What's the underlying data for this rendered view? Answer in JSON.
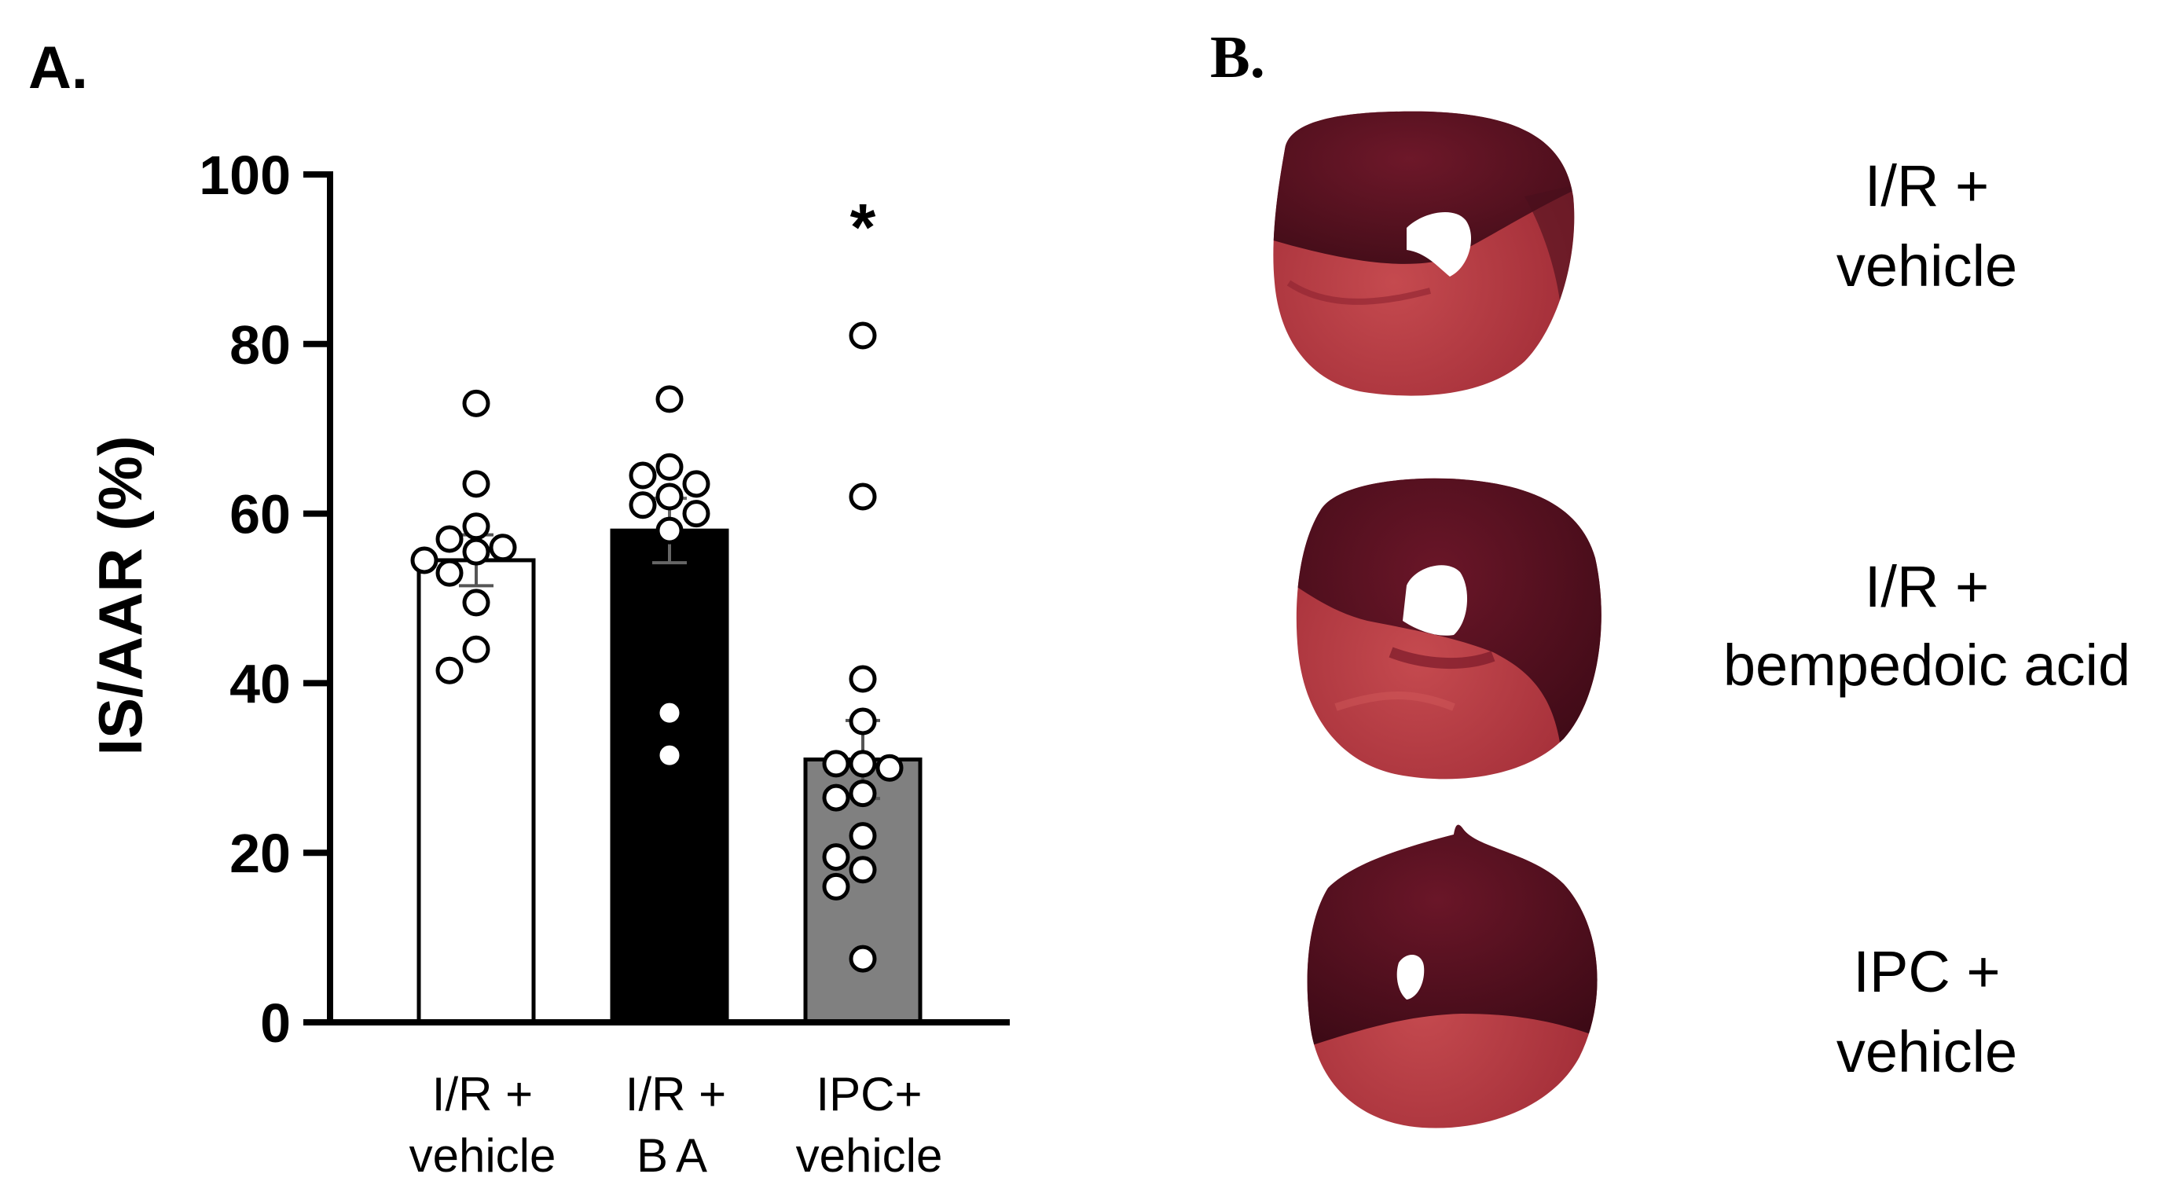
{
  "panels": {
    "a_label": "A.",
    "b_label": "B."
  },
  "chart_data": {
    "type": "bar",
    "ylabel": "IS/AAR (%)",
    "ylim": [
      0,
      100
    ],
    "yticks": [
      "0",
      "20",
      "40",
      "60",
      "80",
      "100"
    ],
    "categories": [
      {
        "line1": "I/R +",
        "line2": "vehicle"
      },
      {
        "line1": "I/R +",
        "line2": "BA"
      },
      {
        "line1": "IPC+",
        "line2": "vehicle"
      }
    ],
    "bars": [
      {
        "mean": 54.5,
        "sem": 3.0,
        "fill": "#ffffff",
        "points": [
          73,
          63.5,
          58.5,
          57,
          56,
          55.5,
          54.5,
          53,
          49.5,
          44,
          41.5
        ]
      },
      {
        "mean": 58.0,
        "sem": 3.8,
        "fill": "#000000",
        "points": [
          73.5,
          65.5,
          64.5,
          63.5,
          62,
          61,
          60,
          58,
          36.5,
          31.5
        ]
      },
      {
        "mean": 31.0,
        "sem": 4.6,
        "fill": "#808080",
        "points": [
          81,
          62,
          40.5,
          35.5,
          30.5,
          30.5,
          30,
          27,
          26.5,
          22,
          19.5,
          18,
          16,
          7.5
        ]
      }
    ],
    "annotations": [
      {
        "text": "*",
        "category_index": 2
      }
    ],
    "grid": false,
    "legend": "none"
  },
  "images": [
    {
      "icon": "heart-slice-image",
      "label_line1": "I/R +",
      "label_line2": "vehicle"
    },
    {
      "icon": "heart-slice-image",
      "label_line1": "I/R +",
      "label_line2": "bempedoic acid"
    },
    {
      "icon": "heart-slice-image",
      "label_line1": "IPC +",
      "label_line2": "vehicle"
    }
  ],
  "colors": {
    "axis": "#000000",
    "tissue_dark": "#4a0f1c",
    "tissue_light": "#b8353d"
  }
}
